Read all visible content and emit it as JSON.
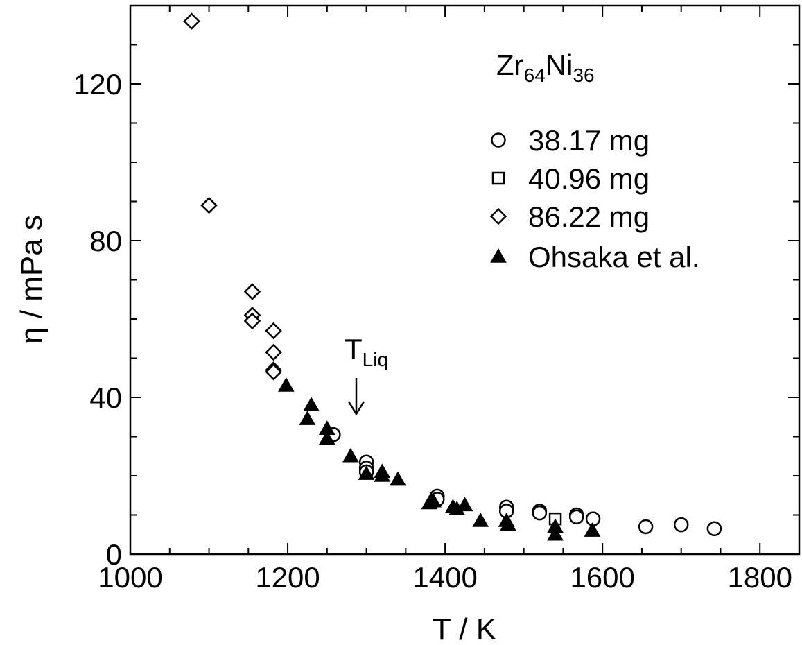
{
  "chart_data": {
    "type": "scatter",
    "title": "",
    "composition_label": {
      "base": "Zr",
      "sub1": "64",
      "mid": "Ni",
      "sub2": "36"
    },
    "xlabel": "T / K",
    "ylabel": "η / mPa s",
    "xlim": [
      1000,
      1850
    ],
    "ylim": [
      0,
      140
    ],
    "x_ticks": [
      1000,
      1200,
      1400,
      1600,
      1800
    ],
    "y_ticks": [
      0,
      40,
      80,
      120
    ],
    "grid": false,
    "legend_position": "top-right",
    "annotation": {
      "text_main": "T",
      "text_sub": "Liq",
      "x": 1288,
      "arrow": "down"
    },
    "series": [
      {
        "name": "38.17 mg",
        "marker": "circle-open",
        "points": [
          [
            1258,
            30.5
          ],
          [
            1300,
            23.5
          ],
          [
            1300,
            22.0
          ],
          [
            1300,
            21.0
          ],
          [
            1390,
            14.8
          ],
          [
            1390,
            14.0
          ],
          [
            1478,
            12.0
          ],
          [
            1478,
            11.0
          ],
          [
            1520,
            11.0
          ],
          [
            1520,
            10.5
          ],
          [
            1567,
            10.0
          ],
          [
            1567,
            9.5
          ],
          [
            1588,
            9.0
          ],
          [
            1655,
            7.0
          ],
          [
            1700,
            7.5
          ],
          [
            1742,
            6.5
          ]
        ]
      },
      {
        "name": "40.96 mg",
        "marker": "square-open",
        "points": [
          [
            1540,
            9.0
          ]
        ]
      },
      {
        "name": "86.22 mg",
        "marker": "diamond-open",
        "points": [
          [
            1078,
            136.0
          ],
          [
            1100,
            89.0
          ],
          [
            1155,
            67.0
          ],
          [
            1155,
            61.0
          ],
          [
            1155,
            59.5
          ],
          [
            1182,
            57.0
          ],
          [
            1182,
            51.5
          ],
          [
            1182,
            47.0
          ],
          [
            1182,
            46.5
          ]
        ]
      },
      {
        "name": "Ohsaka et al.",
        "marker": "triangle-filled",
        "points": [
          [
            1198,
            43.0
          ],
          [
            1230,
            38.0
          ],
          [
            1225,
            34.5
          ],
          [
            1250,
            32.0
          ],
          [
            1250,
            29.5
          ],
          [
            1280,
            25.0
          ],
          [
            1300,
            20.5
          ],
          [
            1320,
            21.0
          ],
          [
            1320,
            20.0
          ],
          [
            1340,
            19.0
          ],
          [
            1380,
            13.0
          ],
          [
            1385,
            13.5
          ],
          [
            1410,
            12.0
          ],
          [
            1415,
            11.5
          ],
          [
            1425,
            12.5
          ],
          [
            1445,
            8.5
          ],
          [
            1478,
            8.5
          ],
          [
            1480,
            7.5
          ],
          [
            1540,
            7.0
          ],
          [
            1540,
            5.0
          ],
          [
            1587,
            6.0
          ]
        ]
      }
    ]
  }
}
